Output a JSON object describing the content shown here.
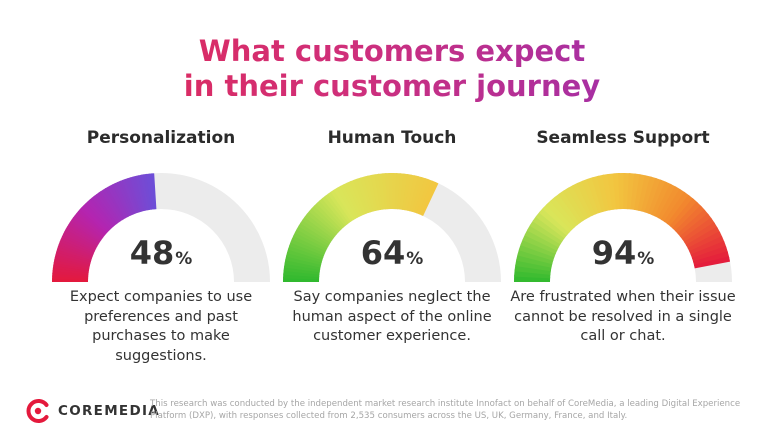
{
  "title": {
    "line1": "What customers expect",
    "line2": "in their customer journey"
  },
  "cards": [
    {
      "heading": "Personalization",
      "value": "48",
      "unit": "%",
      "description": "Expect companies to use preferences and past purchases to make suggestions."
    },
    {
      "heading": "Human Touch",
      "value": "64",
      "unit": "%",
      "description": "Say companies neglect the human aspect of the online customer experience."
    },
    {
      "heading": "Seamless Support",
      "value": "94",
      "unit": "%",
      "description": "Are frustrated when their issue cannot be resolved in a single call or chat."
    }
  ],
  "chart_data": [
    {
      "type": "gauge",
      "title": "Personalization",
      "value": 48,
      "range": [
        0,
        100
      ],
      "colors": [
        "#e4193c",
        "#b424b0",
        "#6c4fd8"
      ],
      "track_color": "#ececec"
    },
    {
      "type": "gauge",
      "title": "Human Touch",
      "value": 64,
      "range": [
        0,
        100
      ],
      "colors": [
        "#2eb82e",
        "#d9e65a",
        "#f2c640"
      ],
      "track_color": "#ececec"
    },
    {
      "type": "gauge",
      "title": "Seamless Support",
      "value": 94,
      "range": [
        0,
        100
      ],
      "colors": [
        "#2eb82e",
        "#d9e65a",
        "#f2c640",
        "#f28a2e",
        "#e4193c"
      ],
      "track_color": "#ececec"
    }
  ],
  "footer": {
    "logo_text": "COREMEDIA",
    "logo_icon": "coremedia-logo-icon",
    "brand_color": "#e4193c",
    "note": "This research was conducted by the independent market research institute Innofact on behalf of CoreMedia, a leading Digital Experience Platform (DXP), with responses collected from 2,535 consumers across the US, UK, Germany, France, and Italy."
  }
}
